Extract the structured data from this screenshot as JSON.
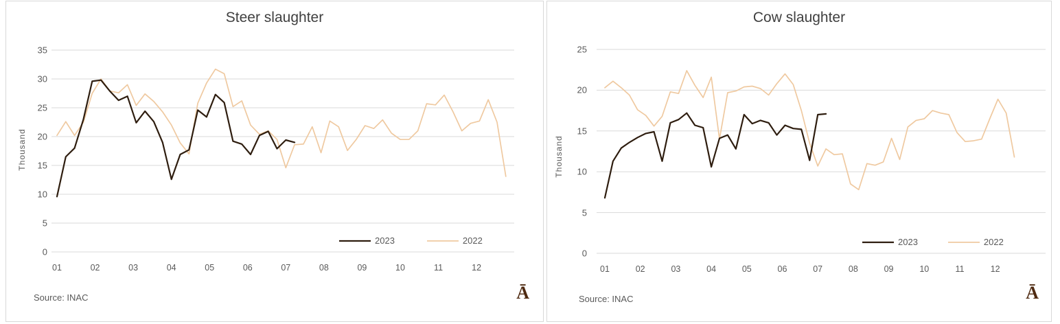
{
  "styles": {
    "background": "#ffffff",
    "panel_border": "#d8d8d8",
    "grid_color": "#d9d9d9",
    "tick_color": "#595959",
    "title_color": "#404040",
    "source_color": "#595959",
    "logo_color": "#4f2b12",
    "series_2023_color": "#2e1d0f",
    "series_2022_color": "#efc9a0"
  },
  "chart_data": [
    {
      "type": "line",
      "title": "Steer slaughter",
      "y_axis_label": "Thousand",
      "x_unit": "week-of-year",
      "x_tick_labels": [
        "01",
        "02",
        "03",
        "04",
        "05",
        "06",
        "07",
        "08",
        "09",
        "10",
        "11",
        "12"
      ],
      "y_ticks": [
        0,
        5,
        10,
        15,
        20,
        25,
        30,
        35
      ],
      "ylim": [
        0,
        35
      ],
      "grid": true,
      "legend_position": "inside-bottom-right",
      "source_note": "Source: INAC",
      "logo_glyph": "Ā",
      "series": [
        {
          "name": "2023",
          "color": "#2e1d0f",
          "values": [
            9.6,
            16.5,
            18.0,
            23.0,
            29.6,
            29.8,
            27.9,
            26.3,
            27.0,
            22.4,
            24.4,
            22.6,
            19.0,
            12.6,
            16.9,
            17.7,
            24.6,
            23.4,
            27.3,
            25.9,
            19.2,
            18.7,
            16.9,
            20.2,
            20.9,
            17.9,
            19.4,
            19.0
          ]
        },
        {
          "name": "2022",
          "color": "#efc9a0",
          "values": [
            20.2,
            22.6,
            20.2,
            22.5,
            27.5,
            30.0,
            27.9,
            27.6,
            29.0,
            25.4,
            27.4,
            26.1,
            24.3,
            22.0,
            18.9,
            17.0,
            25.8,
            29.3,
            31.7,
            30.9,
            25.2,
            26.2,
            22.0,
            20.4,
            21.0,
            19.5,
            14.6,
            18.6,
            18.7,
            21.7,
            17.2,
            22.7,
            21.7,
            17.6,
            19.5,
            21.9,
            21.4,
            22.9,
            20.6,
            19.5,
            19.5,
            21.0,
            25.7,
            25.5,
            27.2,
            24.3,
            21.0,
            22.3,
            22.7,
            26.4,
            22.5,
            13.1
          ]
        }
      ]
    },
    {
      "type": "line",
      "title": "Cow slaughter",
      "y_axis_label": "Thousand",
      "x_unit": "week-of-year",
      "x_tick_labels": [
        "01",
        "02",
        "03",
        "04",
        "05",
        "06",
        "07",
        "08",
        "09",
        "10",
        "11",
        "12"
      ],
      "y_ticks": [
        0,
        5,
        10,
        15,
        20,
        25
      ],
      "ylim": [
        0,
        25
      ],
      "grid": true,
      "legend_position": "inside-bottom-right",
      "source_note": "Source: INAC",
      "logo_glyph": "Ā",
      "series": [
        {
          "name": "2023",
          "color": "#2e1d0f",
          "values": [
            6.8,
            11.3,
            12.9,
            13.6,
            14.2,
            14.7,
            14.9,
            11.3,
            16.0,
            16.4,
            17.2,
            15.7,
            15.4,
            10.6,
            14.1,
            14.5,
            12.8,
            17.0,
            15.9,
            16.3,
            16.0,
            14.5,
            15.7,
            15.3,
            15.2,
            11.4,
            17.0,
            17.1
          ]
        },
        {
          "name": "2022",
          "color": "#efc9a0",
          "values": [
            20.3,
            21.1,
            20.3,
            19.4,
            17.6,
            16.9,
            15.6,
            16.8,
            19.8,
            19.6,
            22.4,
            20.6,
            19.1,
            21.6,
            14.0,
            19.7,
            19.9,
            20.4,
            20.5,
            20.2,
            19.4,
            20.8,
            22.0,
            20.7,
            17.5,
            13.5,
            10.7,
            12.8,
            12.1,
            12.2,
            8.5,
            7.8,
            11.0,
            10.8,
            11.2,
            14.1,
            11.5,
            15.5,
            16.3,
            16.5,
            17.5,
            17.2,
            17.0,
            14.8,
            13.7,
            13.8,
            14.0,
            16.5,
            18.9,
            17.2,
            11.8
          ]
        }
      ]
    }
  ]
}
